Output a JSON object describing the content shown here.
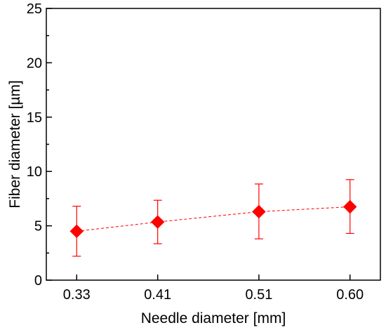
{
  "chart_data": {
    "type": "scatter",
    "title": "",
    "xlabel": "Needle diameter [mm]",
    "ylabel": "Fiber diameter [µm]",
    "categories": [
      "0.33",
      "0.41",
      "0.51",
      "0.60"
    ],
    "x": [
      0.33,
      0.41,
      0.51,
      0.6
    ],
    "xlim": [
      0.3,
      0.63
    ],
    "ylim": [
      0,
      25
    ],
    "yticks": [
      0,
      5,
      10,
      15,
      20,
      25
    ],
    "grid": false,
    "legend": "none",
    "marker": "diamond",
    "connecting_line": "dashed",
    "color": "#ff0000",
    "series": [
      {
        "values": [
          4.5,
          5.35,
          6.3,
          6.75
        ],
        "error_low": [
          2.2,
          3.35,
          3.8,
          4.3
        ],
        "error_high": [
          6.8,
          7.35,
          8.85,
          9.25
        ]
      }
    ]
  }
}
